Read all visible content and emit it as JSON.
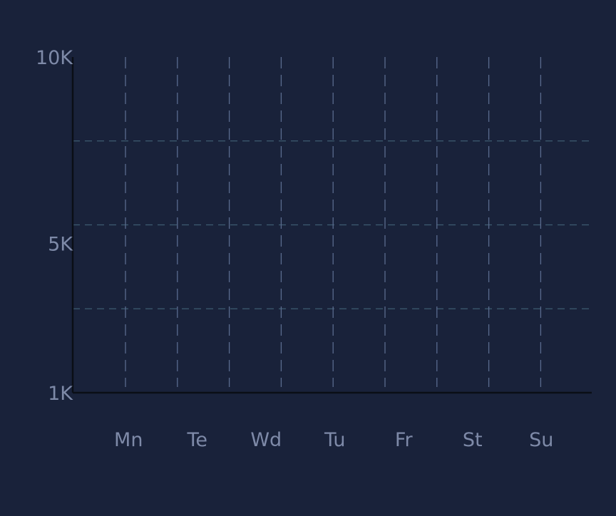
{
  "colors": {
    "background": "#19223a",
    "axis": "#0a0e16",
    "label": "#7e8aa8",
    "grid_horizontal": "#3e5c72",
    "grid_vertical": "#5a6b8e"
  },
  "chart_data": {
    "type": "bar",
    "title": "",
    "xlabel": "",
    "ylabel": "",
    "categories": [
      "Mn",
      "Te",
      "Wd",
      "Tu",
      "Fr",
      "St",
      "Su"
    ],
    "series": [
      {
        "values": [
          null,
          null,
          null,
          null,
          null,
          null,
          null
        ]
      }
    ],
    "ylim": [
      1000,
      10000
    ],
    "y_ticks": [
      {
        "value": 1000,
        "label": "1K"
      },
      {
        "value": 5000,
        "label": "5K"
      },
      {
        "value": 10000,
        "label": "10K"
      }
    ],
    "y_grid_values": [
      3250,
      5500,
      7750
    ],
    "grid": true,
    "legend": "none"
  }
}
